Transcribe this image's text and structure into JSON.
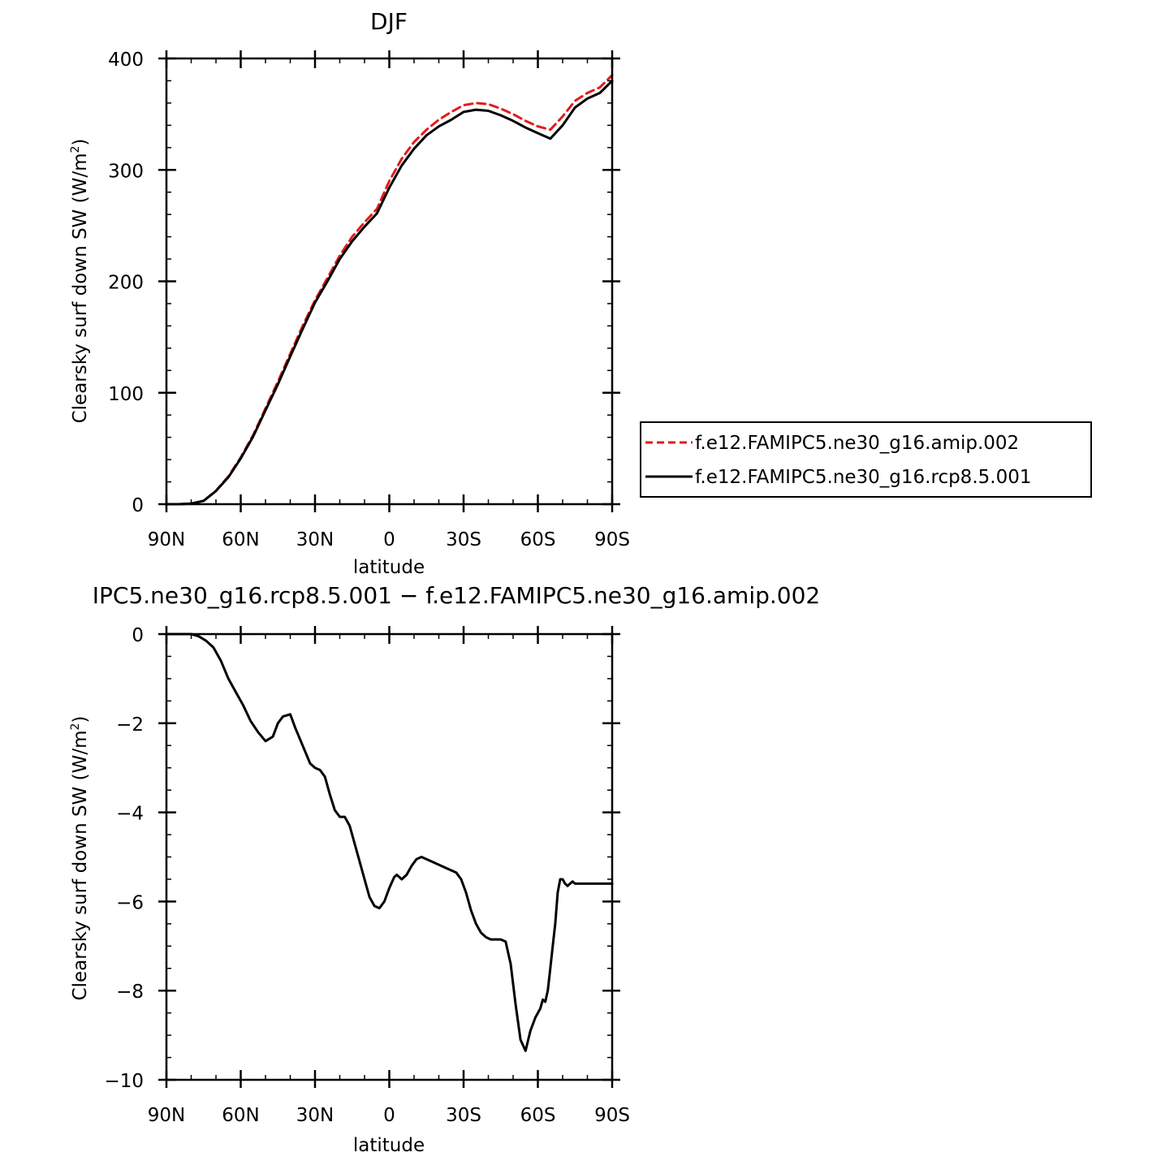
{
  "chart_data": [
    {
      "type": "line",
      "title": "DJF",
      "xlabel": "latitude",
      "ylabel": "Clearsky surf down SW (W/m²)",
      "ylabel_base": "Clearsky surf down SW (W/m",
      "ylabel_sup": "2",
      "ylabel_end": ")",
      "x_axis_note": "latitude plotted from 90N (left) to 90S (right); 90N = 90, 90S = -90",
      "xlim": [
        90,
        -90
      ],
      "ylim": [
        0,
        400
      ],
      "xticks": [
        90,
        60,
        30,
        0,
        -30,
        -60,
        -90
      ],
      "xtick_labels": [
        "90N",
        "60N",
        "30N",
        "0",
        "30S",
        "60S",
        "90S"
      ],
      "yticks": [
        0,
        100,
        200,
        300,
        400
      ],
      "ytick_labels": [
        "0",
        "100",
        "200",
        "300",
        "400"
      ],
      "grid": false,
      "legend_position": "right, outside plot",
      "series": [
        {
          "name": "f.e12.FAMIPC5.ne30_g16.amip.002",
          "color": "#e41a1c",
          "dash": "dashed",
          "x": [
            90,
            85,
            80,
            75,
            70,
            65,
            60,
            55,
            50,
            45,
            40,
            35,
            30,
            25,
            20,
            15,
            10,
            5,
            0,
            -5,
            -10,
            -15,
            -20,
            -25,
            -30,
            -35,
            -40,
            -45,
            -50,
            -55,
            -60,
            -65,
            -70,
            -75,
            -80,
            -85,
            -90
          ],
          "values": [
            0,
            0,
            0.5,
            3,
            12,
            25,
            42,
            62,
            86,
            110,
            135,
            160,
            183,
            203,
            223,
            240,
            253,
            265,
            290,
            310,
            325,
            336,
            345,
            352,
            358,
            360,
            359,
            355,
            350,
            344,
            339,
            336,
            348,
            362,
            369,
            374,
            385
          ]
        },
        {
          "name": "f.e12.FAMIPC5.ne30_g16.rcp8.5.001",
          "color": "#000000",
          "dash": "solid",
          "x": [
            90,
            85,
            80,
            75,
            70,
            65,
            60,
            55,
            50,
            45,
            40,
            35,
            30,
            25,
            20,
            15,
            10,
            5,
            0,
            -5,
            -10,
            -15,
            -20,
            -25,
            -30,
            -35,
            -40,
            -45,
            -50,
            -55,
            -60,
            -65,
            -70,
            -75,
            -80,
            -85,
            -90
          ],
          "values": [
            0,
            0,
            0.5,
            3,
            11.8,
            24.2,
            41,
            60.8,
            84.2,
            107.6,
            132.6,
            157.2,
            181,
            200,
            220,
            236,
            249,
            261,
            284,
            304,
            319,
            331,
            339,
            345,
            352,
            354,
            353,
            349,
            344,
            338,
            333,
            328,
            340,
            356,
            364,
            369,
            380
          ]
        }
      ]
    },
    {
      "type": "line",
      "title": "IPC5.ne30_g16.rcp8.5.001 − f.e12.FAMIPC5.ne30_g16.amip.002",
      "xlabel": "latitude",
      "ylabel": "Clearsky surf down SW (W/m²)",
      "ylabel_base": "Clearsky surf down SW (W/m",
      "ylabel_sup": "2",
      "ylabel_end": ")",
      "x_axis_note": "latitude plotted from 90N (left) to 90S (right); 90N = 90, 90S = -90",
      "xlim": [
        90,
        -90
      ],
      "ylim": [
        -10,
        0
      ],
      "xticks": [
        90,
        60,
        30,
        0,
        -30,
        -60,
        -90
      ],
      "xtick_labels": [
        "90N",
        "60N",
        "30N",
        "0",
        "30S",
        "60S",
        "90S"
      ],
      "yticks": [
        0,
        -2,
        -4,
        -6,
        -8,
        -10
      ],
      "ytick_labels": [
        "0",
        "−2",
        "−4",
        "−6",
        "−8",
        "−10"
      ],
      "grid": false,
      "series": [
        {
          "color": "#000000",
          "dash": "solid",
          "x": [
            90,
            85,
            80,
            77,
            74,
            71,
            68,
            65,
            62,
            59,
            56,
            53,
            50,
            47,
            45,
            43,
            40,
            38,
            35,
            32,
            30,
            28,
            26,
            24,
            22,
            20,
            18,
            16,
            14,
            12,
            10,
            8,
            6,
            4,
            2,
            0,
            -2,
            -3,
            -5,
            -7,
            -9,
            -11,
            -13,
            -15,
            -17,
            -19,
            -21,
            -23,
            -25,
            -27,
            -29,
            -31,
            -33,
            -35,
            -37,
            -39,
            -41,
            -43,
            -45,
            -47,
            -49,
            -51,
            -53,
            -55,
            -57,
            -59,
            -61,
            -62,
            -63,
            -64,
            -65,
            -66,
            -67,
            -68,
            -69,
            -70,
            -71,
            -72,
            -73,
            -74,
            -75,
            -76,
            -77,
            -78,
            -79,
            -80,
            -81,
            -82,
            -84,
            -86,
            -88,
            -90
          ],
          "values": [
            0,
            0,
            0,
            -0.05,
            -0.15,
            -0.3,
            -0.6,
            -1.0,
            -1.3,
            -1.6,
            -1.95,
            -2.2,
            -2.4,
            -2.3,
            -2.0,
            -1.85,
            -1.8,
            -2.1,
            -2.5,
            -2.9,
            -3.0,
            -3.05,
            -3.2,
            -3.6,
            -3.95,
            -4.1,
            -4.1,
            -4.3,
            -4.7,
            -5.1,
            -5.5,
            -5.9,
            -6.1,
            -6.15,
            -6.0,
            -5.7,
            -5.45,
            -5.4,
            -5.5,
            -5.4,
            -5.2,
            -5.05,
            -5.0,
            -5.05,
            -5.1,
            -5.15,
            -5.2,
            -5.25,
            -5.3,
            -5.35,
            -5.5,
            -5.8,
            -6.2,
            -6.5,
            -6.7,
            -6.8,
            -6.85,
            -6.85,
            -6.85,
            -6.9,
            -7.4,
            -8.3,
            -9.1,
            -9.35,
            -8.9,
            -8.6,
            -8.4,
            -8.2,
            -8.25,
            -8.0,
            -7.5,
            -7.0,
            -6.5,
            -5.8,
            -5.5,
            -5.5,
            -5.6,
            -5.65,
            -5.6,
            -5.55,
            -5.6,
            -5.6,
            -5.6,
            -5.6,
            -5.6,
            -5.6,
            -5.6,
            -5.6,
            -5.6,
            -5.6,
            -5.6,
            -5.6
          ]
        }
      ]
    }
  ]
}
